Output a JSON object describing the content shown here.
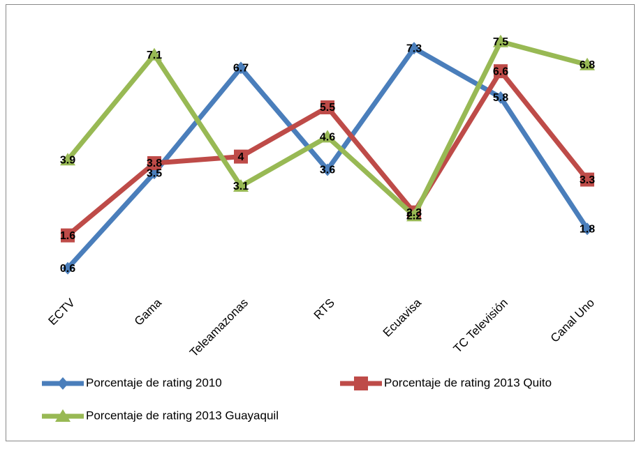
{
  "chart_data": {
    "type": "line",
    "categories": [
      "ECTV",
      "Gama",
      "Teleamazonas",
      "RTS",
      "Ecuavisa",
      "TC Televisión",
      "Canal Uno"
    ],
    "series": [
      {
        "name": "Porcentaje de rating 2010",
        "color": "#4a7ebb",
        "marker": "diamond",
        "values": [
          0.6,
          3.5,
          6.7,
          3.6,
          7.3,
          5.8,
          1.8
        ]
      },
      {
        "name": "Porcentaje de rating 2013 Quito",
        "color": "#be4b48",
        "marker": "square",
        "values": [
          1.6,
          3.8,
          4,
          5.5,
          2.3,
          6.6,
          3.3
        ]
      },
      {
        "name": "Porcentaje de rating 2013 Guayaquil",
        "color": "#98b954",
        "marker": "triangle",
        "values": [
          3.9,
          7.1,
          3.1,
          4.6,
          2.2,
          7.5,
          6.8
        ]
      }
    ],
    "data_labels": true
  }
}
